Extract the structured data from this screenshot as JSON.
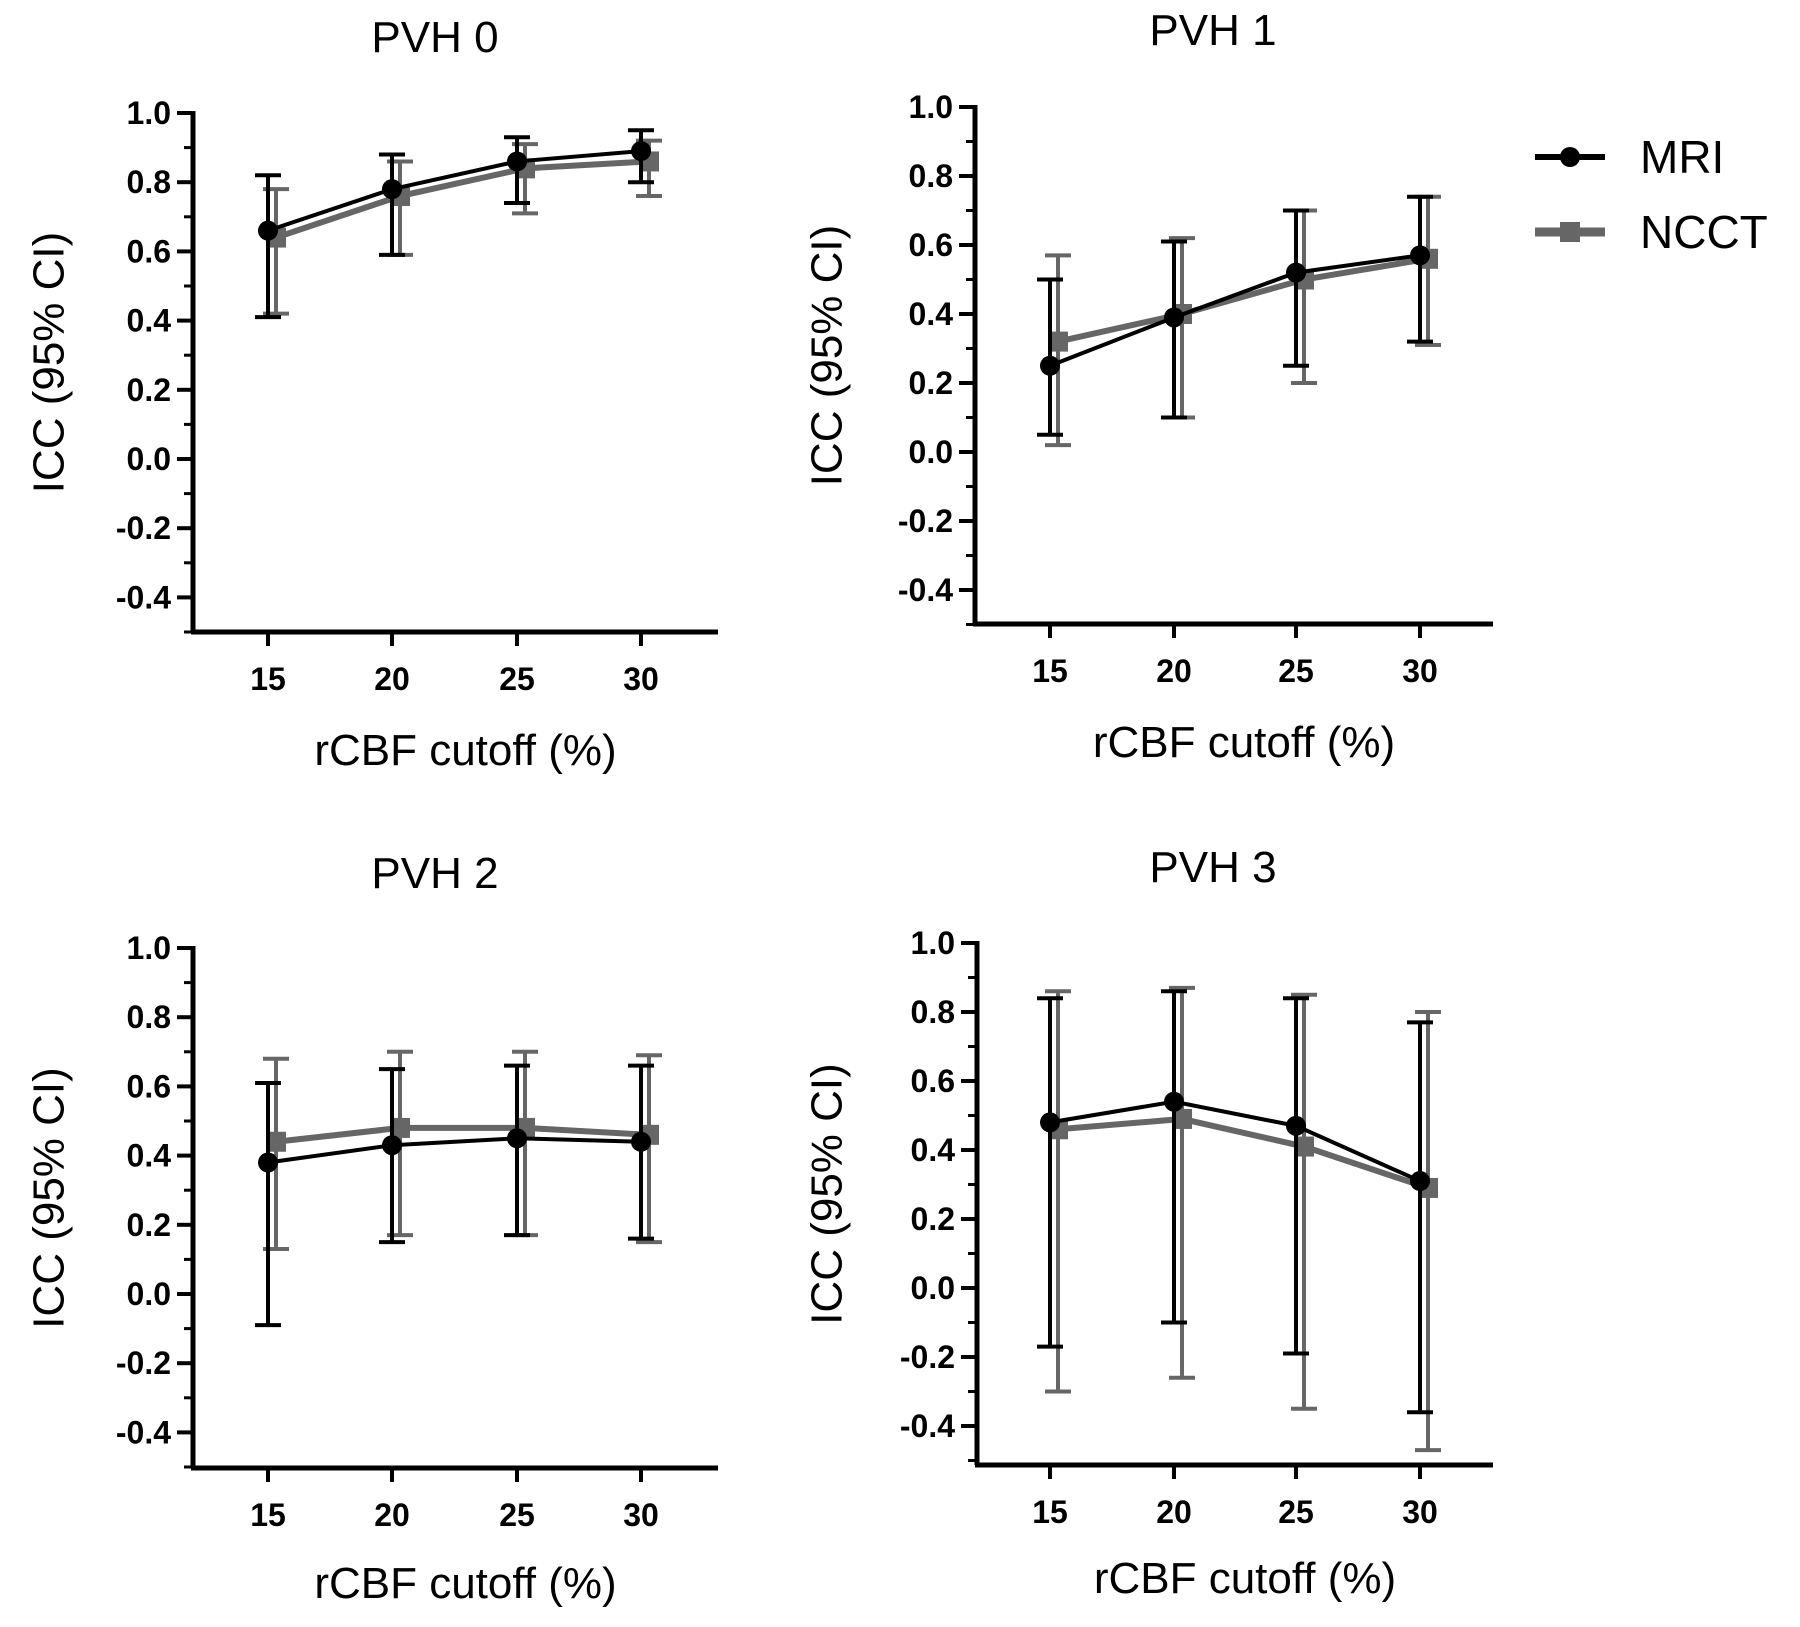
{
  "legend": [
    {
      "name": "MRI",
      "color": "#000000",
      "marker": "circle"
    },
    {
      "name": "NCCT",
      "color": "#666666",
      "marker": "square"
    }
  ],
  "chart_data": [
    {
      "type": "line",
      "title": "PVH 0",
      "xlabel": "rCBF cutoff (%)",
      "ylabel": "ICC (95% CI)",
      "x": [
        15,
        20,
        25,
        30
      ],
      "yticks": [
        "1.0",
        "0.8",
        "0.6",
        "0.4",
        "0.2",
        "0.0",
        "-0.2",
        "-0.4"
      ],
      "ylim": [
        -0.5,
        1.0
      ],
      "series": [
        {
          "name": "MRI",
          "color": "#000000",
          "values": [
            0.66,
            0.78,
            0.86,
            0.89
          ],
          "lower": [
            0.41,
            0.59,
            0.74,
            0.8
          ],
          "upper": [
            0.82,
            0.88,
            0.93,
            0.95
          ]
        },
        {
          "name": "NCCT",
          "color": "#666666",
          "values": [
            0.64,
            0.76,
            0.84,
            0.86
          ],
          "lower": [
            0.42,
            0.59,
            0.71,
            0.76
          ],
          "upper": [
            0.78,
            0.86,
            0.91,
            0.92
          ]
        }
      ]
    },
    {
      "type": "line",
      "title": "PVH 1",
      "xlabel": "rCBF cutoff (%)",
      "ylabel": "ICC (95% CI)",
      "x": [
        15,
        20,
        25,
        30
      ],
      "yticks": [
        "1.0",
        "0.8",
        "0.6",
        "0.4",
        "0.2",
        "0.0",
        "-0.2",
        "-0.4"
      ],
      "ylim": [
        -0.5,
        1.0
      ],
      "series": [
        {
          "name": "MRI",
          "color": "#000000",
          "values": [
            0.25,
            0.39,
            0.52,
            0.57
          ],
          "lower": [
            0.05,
            0.1,
            0.25,
            0.32
          ],
          "upper": [
            0.5,
            0.61,
            0.7,
            0.74
          ]
        },
        {
          "name": "NCCT",
          "color": "#666666",
          "values": [
            0.32,
            0.4,
            0.5,
            0.56
          ],
          "lower": [
            0.02,
            0.1,
            0.2,
            0.31
          ],
          "upper": [
            0.57,
            0.62,
            0.7,
            0.74
          ]
        }
      ]
    },
    {
      "type": "line",
      "title": "PVH 2",
      "xlabel": "rCBF cutoff (%)",
      "ylabel": "ICC (95% CI)",
      "x": [
        15,
        20,
        25,
        30
      ],
      "yticks": [
        "1.0",
        "0.8",
        "0.6",
        "0.4",
        "0.2",
        "0.0",
        "-0.2",
        "-0.4"
      ],
      "ylim": [
        -0.5,
        1.0
      ],
      "series": [
        {
          "name": "MRI",
          "color": "#000000",
          "values": [
            0.38,
            0.43,
            0.45,
            0.44
          ],
          "lower": [
            -0.09,
            0.15,
            0.17,
            0.16
          ],
          "upper": [
            0.61,
            0.65,
            0.66,
            0.66
          ]
        },
        {
          "name": "NCCT",
          "color": "#666666",
          "values": [
            0.44,
            0.48,
            0.48,
            0.46
          ],
          "lower": [
            0.13,
            0.17,
            0.17,
            0.15
          ],
          "upper": [
            0.68,
            0.7,
            0.7,
            0.69
          ]
        }
      ]
    },
    {
      "type": "line",
      "title": "PVH 3",
      "xlabel": "rCBF cutoff (%)",
      "ylabel": "ICC (95% CI)",
      "x": [
        15,
        20,
        25,
        30
      ],
      "yticks": [
        "1.0",
        "0.8",
        "0.6",
        "0.4",
        "0.2",
        "0.0",
        "-0.2",
        "-0.4"
      ],
      "ylim": [
        -0.5,
        1.0
      ],
      "series": [
        {
          "name": "MRI",
          "color": "#000000",
          "values": [
            0.48,
            0.54,
            0.47,
            0.31
          ],
          "lower": [
            -0.17,
            -0.1,
            -0.19,
            -0.36
          ],
          "upper": [
            0.84,
            0.86,
            0.84,
            0.77
          ]
        },
        {
          "name": "NCCT",
          "color": "#666666",
          "values": [
            0.46,
            0.49,
            0.41,
            0.29
          ],
          "lower": [
            -0.3,
            -0.26,
            -0.35,
            -0.47
          ],
          "upper": [
            0.86,
            0.87,
            0.85,
            0.8
          ]
        }
      ]
    }
  ]
}
